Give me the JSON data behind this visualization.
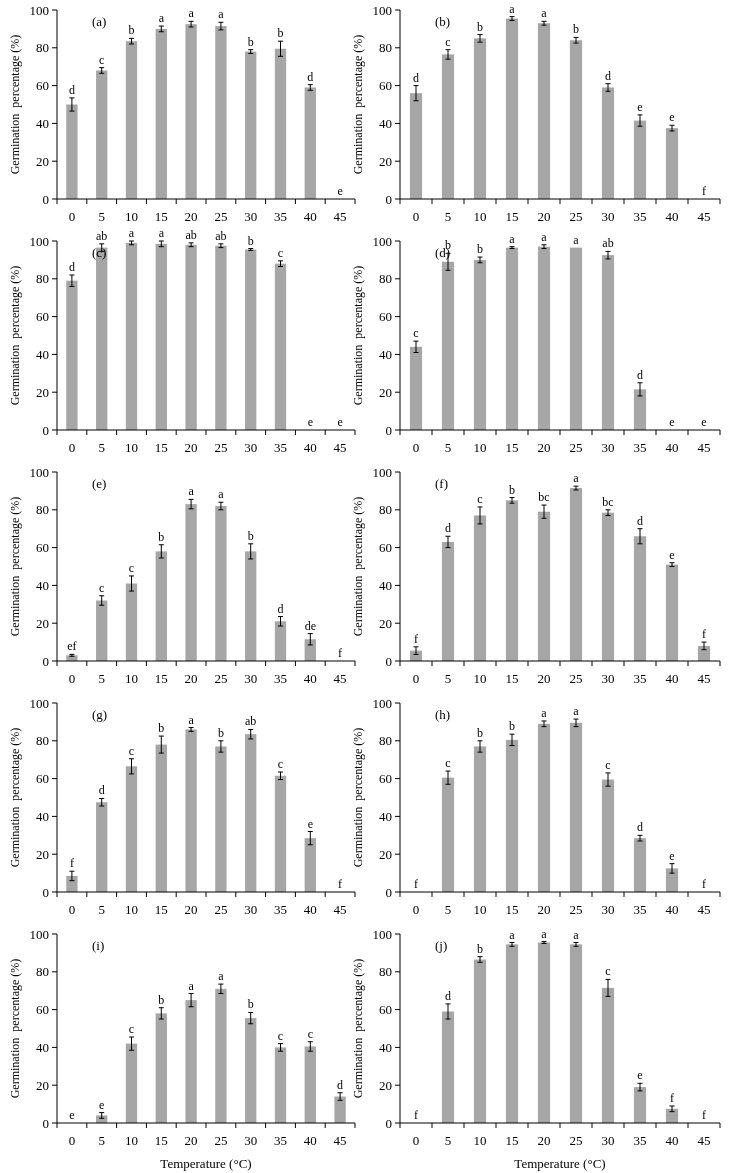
{
  "chart_data": [
    {
      "type": "bar",
      "title": "(a)",
      "ylabel": "Germination  percentage (%)",
      "categories": [
        "0",
        "5",
        "10",
        "15",
        "20",
        "25",
        "30",
        "35",
        "40",
        "45"
      ],
      "color": "#a6a6a6",
      "ylim": [
        0,
        100
      ],
      "yticks": [
        0,
        20,
        40,
        60,
        80,
        100
      ],
      "values": [
        50,
        68,
        83.5,
        90,
        92.5,
        91.5,
        78,
        79.5,
        59,
        0
      ],
      "errors": [
        3.5,
        1.5,
        1.5,
        1.5,
        1.5,
        2,
        1,
        4,
        1.5,
        null
      ],
      "value_labels": [
        "d",
        "c",
        "b",
        "a",
        "a",
        "a",
        "b",
        "b",
        "d",
        "e"
      ]
    },
    {
      "type": "bar",
      "title": "(b)",
      "ylabel": "Germination  percentage (%)",
      "categories": [
        "0",
        "5",
        "10",
        "15",
        "20",
        "25",
        "30",
        "35",
        "40",
        "45"
      ],
      "color": "#a6a6a6",
      "ylim": [
        0,
        100
      ],
      "yticks": [
        0,
        20,
        40,
        60,
        80,
        100
      ],
      "values": [
        56,
        76.5,
        85,
        95.5,
        93,
        84,
        59,
        41.5,
        37.5,
        0
      ],
      "errors": [
        4,
        2.5,
        2,
        1,
        1,
        1.5,
        2,
        3,
        1.5,
        null
      ],
      "value_labels": [
        "d",
        "c",
        "b",
        "a",
        "a",
        "b",
        "d",
        "e",
        "e",
        "f"
      ]
    },
    {
      "type": "bar",
      "title": "(c)",
      "ylabel": "Germination  percentage (%)",
      "categories": [
        "0",
        "5",
        "10",
        "15",
        "20",
        "25",
        "30",
        "35",
        "40",
        "45"
      ],
      "color": "#a6a6a6",
      "ylim": [
        0,
        100
      ],
      "yticks": [
        0,
        20,
        40,
        60,
        80,
        100
      ],
      "values": [
        79,
        96.5,
        99,
        98.5,
        98,
        97.5,
        95.5,
        88,
        0,
        0
      ],
      "errors": [
        3,
        2,
        1,
        1.5,
        1,
        1,
        0.5,
        1.5,
        null,
        null
      ],
      "value_labels": [
        "d",
        "ab",
        "a",
        "a",
        "ab",
        "ab",
        "b",
        "c",
        "e",
        "e"
      ]
    },
    {
      "type": "bar",
      "title": "(d)",
      "ylabel": "Germination  percentage (%)",
      "categories": [
        "0",
        "5",
        "10",
        "15",
        "20",
        "25",
        "30",
        "35",
        "40",
        "45"
      ],
      "color": "#a6a6a6",
      "ylim": [
        0,
        100
      ],
      "yticks": [
        0,
        20,
        40,
        60,
        80,
        100
      ],
      "values": [
        44,
        89,
        90,
        96.5,
        97,
        96.5,
        92.5,
        21.5,
        0,
        0
      ],
      "errors": [
        3,
        4.5,
        1.5,
        0.5,
        1,
        null,
        2,
        3.5,
        null,
        null
      ],
      "value_labels": [
        "c",
        "b",
        "b",
        "a",
        "a",
        "a",
        "ab",
        "d",
        "e",
        "e"
      ]
    },
    {
      "type": "bar",
      "title": "(e)",
      "ylabel": "Germination  percentage (%)",
      "categories": [
        "0",
        "5",
        "10",
        "15",
        "20",
        "25",
        "30",
        "35",
        "40",
        "45"
      ],
      "color": "#a6a6a6",
      "ylim": [
        0,
        100
      ],
      "yticks": [
        0,
        20,
        40,
        60,
        80,
        100
      ],
      "values": [
        3,
        32,
        41,
        58,
        83,
        82,
        58,
        21,
        11.5,
        0
      ],
      "errors": [
        0.5,
        2.5,
        4,
        3.5,
        2.5,
        2,
        4,
        2.5,
        3,
        null
      ],
      "value_labels": [
        "ef",
        "c",
        "c",
        "b",
        "a",
        "a",
        "b",
        "d",
        "de",
        "f"
      ]
    },
    {
      "type": "bar",
      "title": "(f)",
      "ylabel": "Germination  percentage (%)",
      "categories": [
        "0",
        "5",
        "10",
        "15",
        "20",
        "25",
        "30",
        "35",
        "40",
        "45"
      ],
      "color": "#a6a6a6",
      "ylim": [
        0,
        100
      ],
      "yticks": [
        0,
        20,
        40,
        60,
        80,
        100
      ],
      "values": [
        5.5,
        63,
        77,
        85,
        79,
        91.5,
        78.5,
        66,
        51,
        8
      ],
      "errors": [
        2,
        3,
        4.5,
        1.5,
        3.5,
        1,
        1.5,
        4,
        1,
        2
      ],
      "value_labels": [
        "f",
        "d",
        "c",
        "b",
        "bc",
        "a",
        "bc",
        "d",
        "e",
        "f"
      ]
    },
    {
      "type": "bar",
      "title": "(g)",
      "ylabel": "Germination  percentage (%)",
      "categories": [
        "0",
        "5",
        "10",
        "15",
        "20",
        "25",
        "30",
        "35",
        "40",
        "45"
      ],
      "color": "#a6a6a6",
      "ylim": [
        0,
        100
      ],
      "yticks": [
        0,
        20,
        40,
        60,
        80,
        100
      ],
      "values": [
        8.5,
        47.5,
        66.5,
        78,
        86,
        77,
        83.5,
        61.5,
        28.5,
        0
      ],
      "errors": [
        2.5,
        2,
        4,
        4.5,
        1,
        3,
        2.5,
        2,
        3.5,
        null
      ],
      "value_labels": [
        "f",
        "d",
        "c",
        "b",
        "a",
        "b",
        "ab",
        "c",
        "e",
        "f"
      ]
    },
    {
      "type": "bar",
      "title": "(h)",
      "ylabel": "Germination  percentage (%)",
      "categories": [
        "0",
        "5",
        "10",
        "15",
        "20",
        "25",
        "30",
        "35",
        "40",
        "45"
      ],
      "color": "#a6a6a6",
      "ylim": [
        0,
        100
      ],
      "yticks": [
        0,
        20,
        40,
        60,
        80,
        100
      ],
      "values": [
        0,
        60.5,
        77,
        80.5,
        89,
        89.5,
        59.5,
        28.5,
        12.5,
        0
      ],
      "errors": [
        null,
        3.5,
        3,
        3,
        1.5,
        2,
        3.5,
        1.5,
        2.5,
        null
      ],
      "value_labels": [
        "f",
        "c",
        "b",
        "b",
        "a",
        "a",
        "c",
        "d",
        "e",
        "f"
      ]
    },
    {
      "type": "bar",
      "title": "(i)",
      "ylabel": "Germination  percentage (%)",
      "xlabel": "Temperature (°C)",
      "categories": [
        "0",
        "5",
        "10",
        "15",
        "20",
        "25",
        "30",
        "35",
        "40",
        "45"
      ],
      "color": "#a6a6a6",
      "ylim": [
        0,
        100
      ],
      "yticks": [
        0,
        20,
        40,
        60,
        80,
        100
      ],
      "values": [
        0,
        4,
        42,
        58,
        65,
        71,
        55.5,
        40,
        40.5,
        14
      ],
      "errors": [
        null,
        1.5,
        3.5,
        3,
        3.5,
        2.5,
        3,
        2,
        2.5,
        2
      ],
      "value_labels": [
        "e",
        "e",
        "c",
        "b",
        "a",
        "a",
        "b",
        "c",
        "c",
        "d"
      ]
    },
    {
      "type": "bar",
      "title": "(j)",
      "ylabel": "Germination  percentage (%)",
      "xlabel": "Temperature (°C)",
      "categories": [
        "0",
        "5",
        "10",
        "15",
        "20",
        "25",
        "30",
        "35",
        "40",
        "45"
      ],
      "color": "#a6a6a6",
      "ylim": [
        0,
        100
      ],
      "yticks": [
        0,
        20,
        40,
        60,
        80,
        100
      ],
      "values": [
        0,
        59,
        86.5,
        94.5,
        95.5,
        94.5,
        71.5,
        19,
        7.5,
        0
      ],
      "errors": [
        null,
        4,
        1.5,
        1,
        0.5,
        1,
        4.5,
        2,
        1.5,
        null
      ],
      "value_labels": [
        "f",
        "d",
        "b",
        "a",
        "a",
        "a",
        "c",
        "e",
        "f",
        "f"
      ]
    }
  ]
}
